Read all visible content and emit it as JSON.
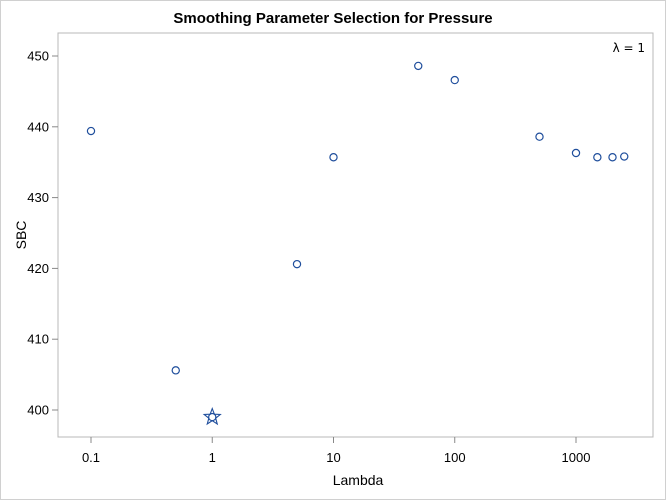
{
  "chart_data": {
    "type": "scatter",
    "title": "Smoothing Parameter Selection for Pressure",
    "xlabel": "Lambda",
    "ylabel": "SBC",
    "x_scale": "log",
    "x_ticks": [
      0.1,
      1,
      10,
      100,
      1000
    ],
    "x_tick_labels": [
      "0.1",
      "1",
      "10",
      "100",
      "1000"
    ],
    "y_ticks": [
      400,
      410,
      420,
      430,
      440,
      450
    ],
    "y_tick_labels": [
      "400",
      "410",
      "420",
      "430",
      "440",
      "450"
    ],
    "ylim": [
      396,
      452
    ],
    "grid": false,
    "annotation": "λ = 1",
    "selected": {
      "x": 1,
      "y": 399.0,
      "marker": "star"
    },
    "x": [
      0.1,
      0.5,
      1,
      5,
      10,
      50,
      100,
      500,
      1000,
      1500,
      2000,
      2500
    ],
    "y": [
      439.4,
      405.6,
      399.0,
      420.6,
      435.7,
      448.6,
      446.6,
      438.6,
      436.3,
      435.7,
      435.7,
      435.8
    ],
    "marker_color": "#1f4e9c"
  }
}
